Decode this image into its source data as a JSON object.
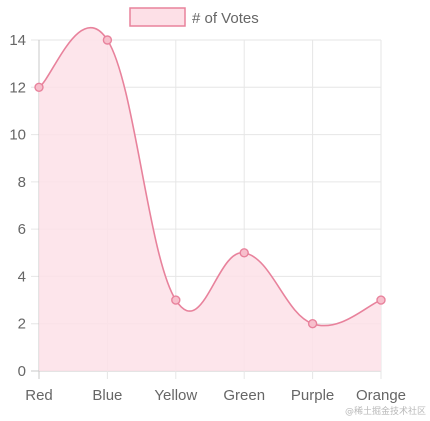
{
  "chart_data": {
    "type": "line",
    "categories": [
      "Red",
      "Blue",
      "Yellow",
      "Green",
      "Purple",
      "Orange"
    ],
    "series": [
      {
        "name": "# of Votes",
        "values": [
          12,
          14,
          3,
          5,
          2,
          3
        ]
      }
    ],
    "ylim": [
      0,
      14
    ],
    "yticks": [
      0,
      2,
      4,
      6,
      8,
      10,
      12,
      14
    ],
    "grid": true,
    "fill": true,
    "smooth": true,
    "legend_position": "top-center",
    "colors": {
      "line": "#e8829c",
      "fill": "#fde0e7",
      "point_fill": "#f7bfcc",
      "grid": "#e6e6e6",
      "axis": "#c8c8c8",
      "text": "#666666"
    }
  },
  "watermark": "@稀土掘金技术社区"
}
